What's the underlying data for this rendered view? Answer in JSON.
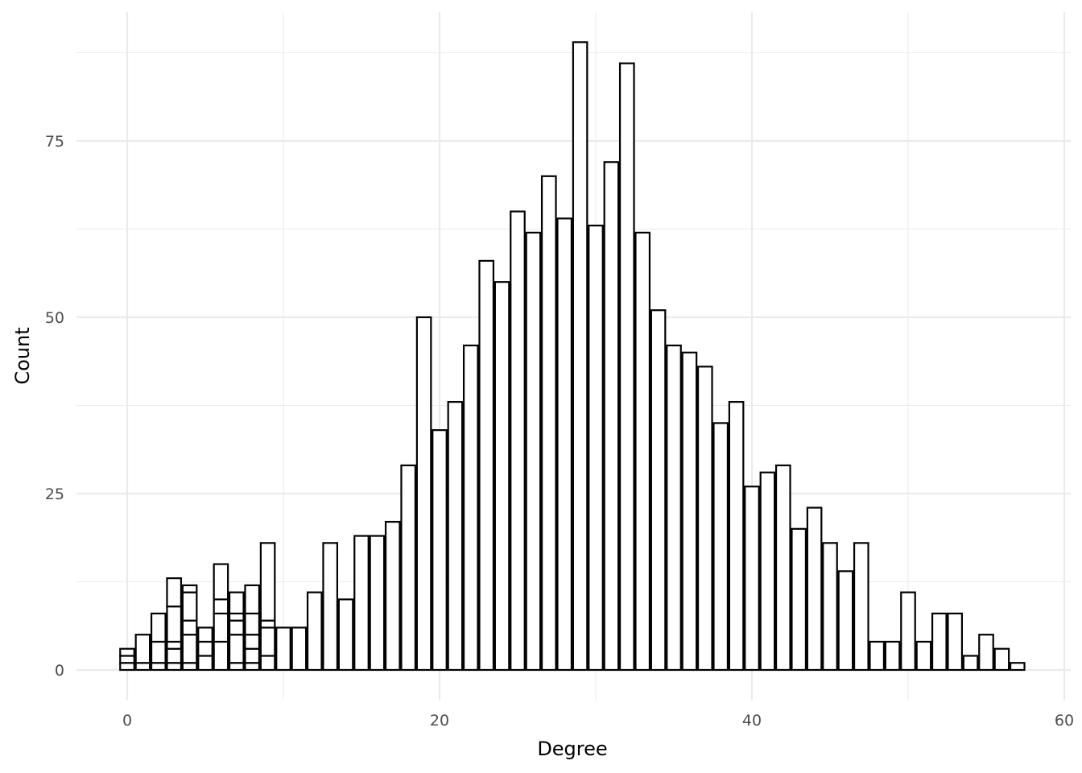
{
  "chart_data": {
    "type": "bar",
    "title": "",
    "xlabel": "Degree",
    "ylabel": "Count",
    "xlim": [
      -3.2,
      60
    ],
    "ylim": [
      -4.4,
      93.3
    ],
    "x_ticks": [
      0,
      20,
      40,
      60
    ],
    "y_ticks": [
      0,
      25,
      50,
      75
    ],
    "x_minor_ticks": [
      10,
      30,
      50
    ],
    "y_minor_ticks": [
      12.5,
      37.5,
      62.5,
      87.5
    ],
    "grid": true,
    "legend": "none",
    "bar_fill": "#ffffff",
    "bar_outline": "#000000",
    "bin_width": 0.9,
    "x": [
      0,
      1,
      2,
      3,
      4,
      5,
      6,
      7,
      8,
      9,
      10,
      11,
      12,
      13,
      14,
      15,
      16,
      17,
      18,
      19,
      20,
      21,
      22,
      23,
      24,
      25,
      26,
      27,
      28,
      29,
      30,
      31,
      32,
      33,
      34,
      35,
      36,
      37,
      38,
      39,
      40,
      41,
      42,
      43,
      44,
      45,
      46,
      47,
      48,
      49,
      50,
      51,
      52,
      53,
      54,
      55,
      56,
      57
    ],
    "counts": [
      3,
      5,
      8,
      13,
      12,
      6,
      15,
      11,
      12,
      18,
      6,
      6,
      11,
      18,
      10,
      19,
      19,
      21,
      29,
      50,
      34,
      38,
      46,
      58,
      55,
      65,
      62,
      70,
      64,
      89,
      63,
      72,
      86,
      62,
      51,
      46,
      45,
      43,
      35,
      38,
      26,
      28,
      29,
      20,
      23,
      18,
      14,
      18,
      4,
      4,
      11,
      4,
      8,
      8,
      2,
      5,
      3,
      1
    ],
    "stack_segments": [
      {
        "x": 0,
        "values": [
          1,
          1,
          1
        ]
      },
      {
        "x": 1,
        "values": [
          1,
          4
        ]
      },
      {
        "x": 2,
        "values": [
          1,
          3,
          4
        ]
      },
      {
        "x": 3,
        "values": [
          1,
          2,
          1,
          5,
          4
        ]
      },
      {
        "x": 4,
        "values": [
          1,
          4,
          2,
          4,
          1
        ]
      },
      {
        "x": 5,
        "values": [
          2,
          2,
          2
        ]
      },
      {
        "x": 6,
        "values": [
          4,
          4,
          2,
          5
        ]
      },
      {
        "x": 7,
        "values": [
          1,
          4,
          2,
          1,
          3
        ]
      },
      {
        "x": 8,
        "values": [
          1,
          2,
          2,
          3,
          4
        ]
      },
      {
        "x": 9,
        "values": [
          2,
          4,
          1,
          11
        ]
      }
    ]
  }
}
